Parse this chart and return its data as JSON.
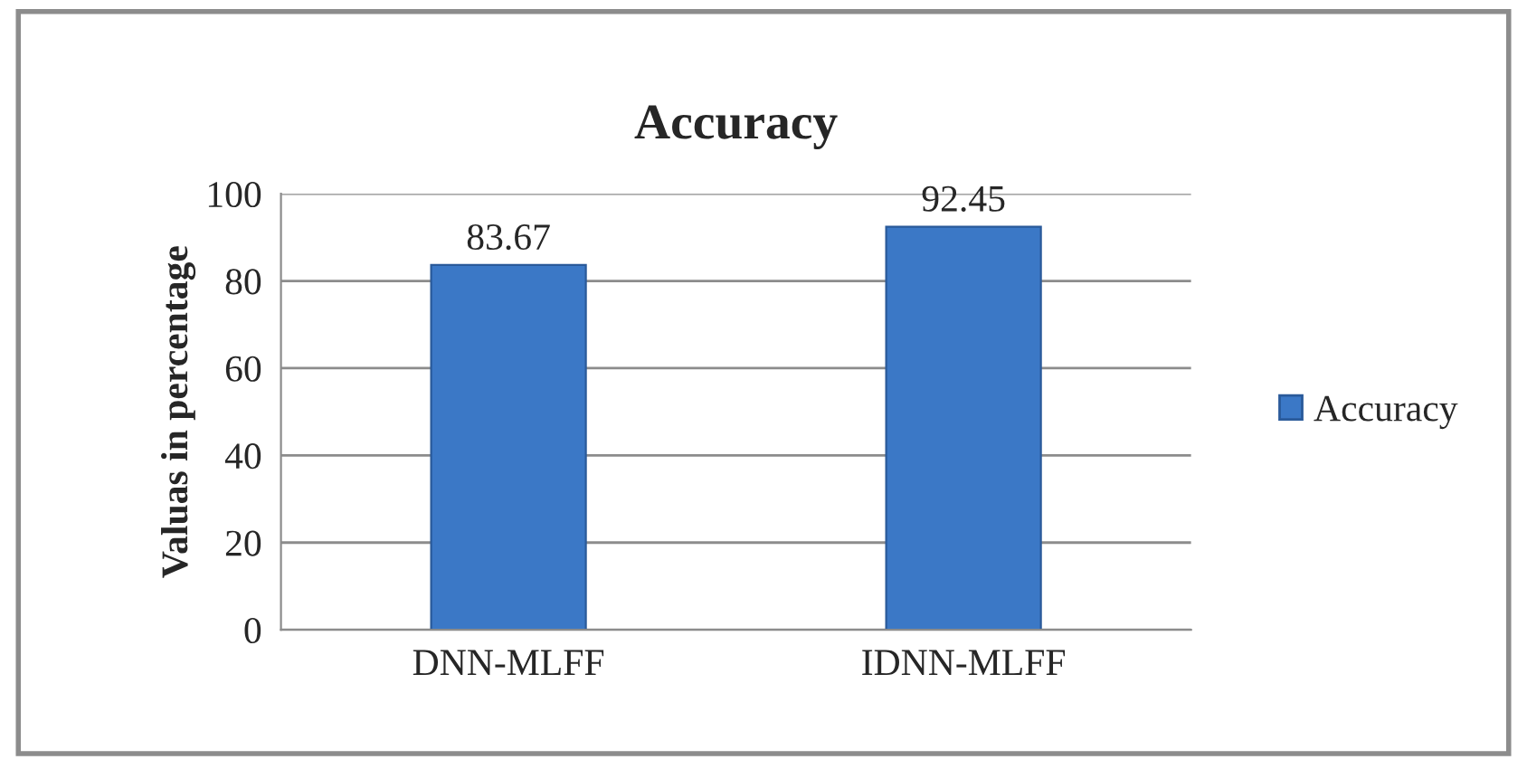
{
  "chart_data": {
    "type": "bar",
    "title": "Accuracy",
    "ylabel": "Valuas in percentage",
    "categories": [
      "DNN-MLFF",
      "IDNN-MLFF"
    ],
    "series": [
      {
        "name": "Accuracy",
        "color": "#3b78c6",
        "values": [
          83.67,
          92.45
        ]
      }
    ],
    "ylim": [
      0,
      100
    ],
    "yticks": [
      0,
      20,
      40,
      60,
      80,
      100
    ],
    "grid": "y",
    "legend": "right",
    "data_labels": true
  }
}
